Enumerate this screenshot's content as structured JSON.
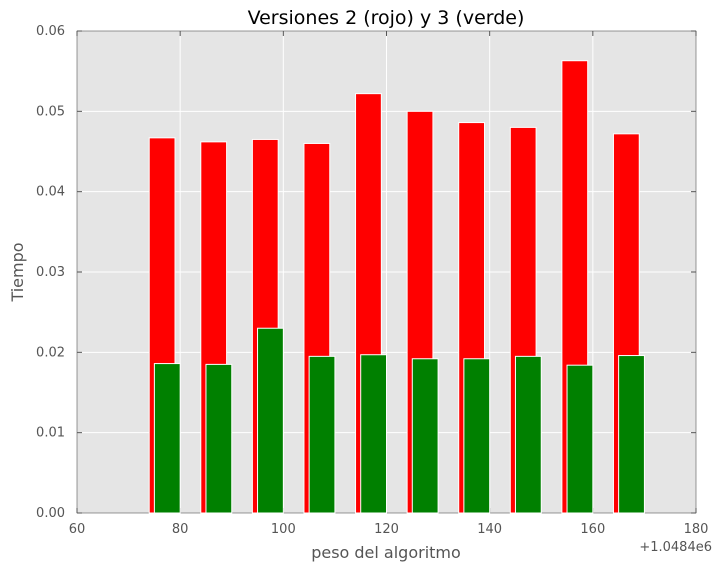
{
  "chart_data": {
    "type": "bar",
    "title": "Versiones 2 (rojo) y 3 (verde)",
    "xlabel": "peso del algoritmo",
    "ylabel": "Tiempo",
    "x_offset_label": "+1.0484e6",
    "xlim": [
      60,
      180
    ],
    "ylim": [
      0,
      0.06
    ],
    "xticks": [
      "60",
      "80",
      "100",
      "120",
      "140",
      "160",
      "180"
    ],
    "yticks": [
      "0.00",
      "0.01",
      "0.02",
      "0.03",
      "0.04",
      "0.05",
      "0.06"
    ],
    "grid": true,
    "background": "#e5e5e5",
    "series": [
      {
        "color": "#ff0000",
        "x": [
          74,
          84,
          94,
          104,
          114,
          124,
          134,
          144,
          154,
          164
        ],
        "values": [
          0.0467,
          0.0462,
          0.0465,
          0.046,
          0.0522,
          0.05,
          0.0486,
          0.048,
          0.0563,
          0.0472
        ]
      },
      {
        "color": "#008000",
        "x": [
          75,
          85,
          95,
          105,
          115,
          125,
          135,
          145,
          155,
          165
        ],
        "values": [
          0.0186,
          0.0185,
          0.023,
          0.0195,
          0.0197,
          0.0192,
          0.0192,
          0.0195,
          0.0184,
          0.0196
        ]
      }
    ]
  }
}
